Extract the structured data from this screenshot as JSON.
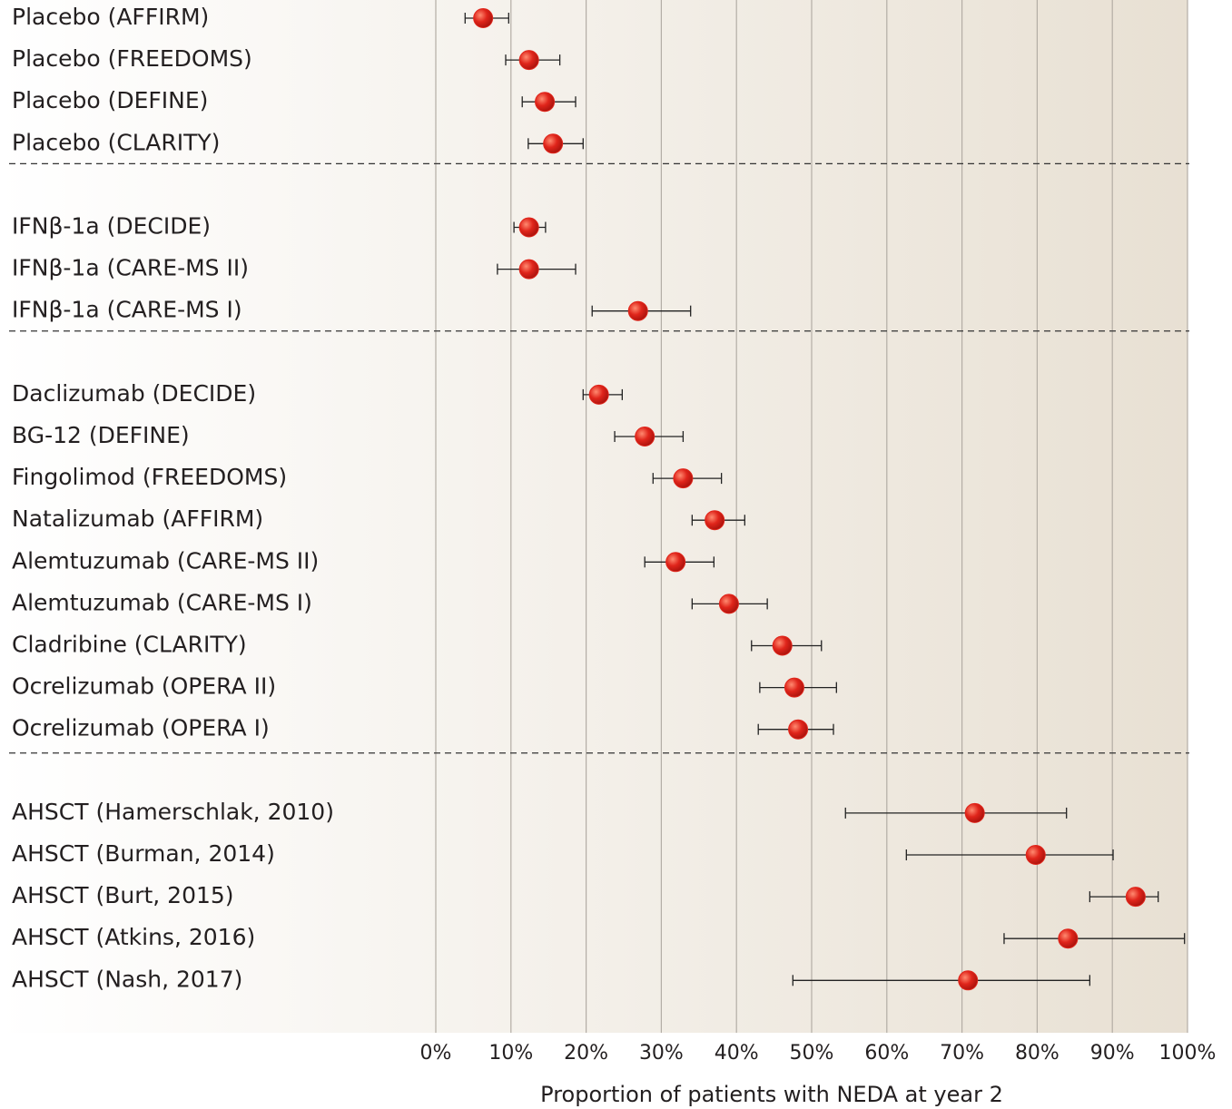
{
  "chart_data": {
    "type": "forest",
    "x_label": "Proportion of patients with NEDA at year 2",
    "xlim": [
      0,
      100
    ],
    "xticks": [
      {
        "value": 0,
        "label": "0%"
      },
      {
        "value": 10,
        "label": "10%"
      },
      {
        "value": 20,
        "label": "20%"
      },
      {
        "value": 30,
        "label": "30%"
      },
      {
        "value": 40,
        "label": "40%"
      },
      {
        "value": 50,
        "label": "50%"
      },
      {
        "value": 60,
        "label": "60%"
      },
      {
        "value": 70,
        "label": "70%"
      },
      {
        "value": 80,
        "label": "80%"
      },
      {
        "value": 90,
        "label": "90%"
      },
      {
        "value": 100,
        "label": "100%"
      }
    ],
    "grid": true,
    "color": "#e0251b",
    "groups": [
      {
        "categories": [
          "Placebo (AFFIRM)",
          "Placebo (FREEDOMS)",
          "Placebo (DEFINE)",
          "Placebo (CLARITY)"
        ],
        "values": [
          6.3,
          12.4,
          14.5,
          15.6
        ],
        "low": [
          3.9,
          9.3,
          11.5,
          12.3
        ],
        "high": [
          9.7,
          16.5,
          18.6,
          19.6
        ]
      },
      {
        "categories": [
          "IFNβ-1a (DECIDE)",
          "IFNβ-1a (CARE-MS II)",
          "IFNβ-1a (CARE-MS I)"
        ],
        "values": [
          12.4,
          12.4,
          26.9
        ],
        "low": [
          10.4,
          8.2,
          20.8
        ],
        "high": [
          14.6,
          18.6,
          33.9
        ]
      },
      {
        "categories": [
          "Daclizumab (DECIDE)",
          "BG-12 (DEFINE)",
          "Fingolimod (FREEDOMS)",
          "Natalizumab (AFFIRM)",
          "Alemtuzumab (CARE-MS II)",
          "Alemtuzumab (CARE-MS I)",
          "Cladribine (CLARITY)",
          "Ocrelizumab (OPERA II)",
          "Ocrelizumab (OPERA I)"
        ],
        "values": [
          21.7,
          27.8,
          32.9,
          37.1,
          31.9,
          39.0,
          46.1,
          47.7,
          48.2
        ],
        "low": [
          19.6,
          23.8,
          28.9,
          34.1,
          27.8,
          34.1,
          42.0,
          43.1,
          42.9
        ],
        "high": [
          24.8,
          32.9,
          38.0,
          41.1,
          37.0,
          44.1,
          51.3,
          53.3,
          52.9
        ]
      },
      {
        "categories": [
          "AHSCT (Hamerschlak, 2010)",
          "AHSCT (Burman, 2014)",
          "AHSCT (Burt, 2015)",
          "AHSCT (Atkins, 2016)",
          "AHSCT (Nash, 2017)"
        ],
        "values": [
          71.7,
          79.8,
          93.1,
          84.1,
          70.8
        ],
        "low": [
          54.5,
          62.6,
          87.0,
          75.6,
          47.5
        ],
        "high": [
          83.9,
          90.1,
          96.1,
          99.6,
          87.0
        ]
      }
    ]
  }
}
